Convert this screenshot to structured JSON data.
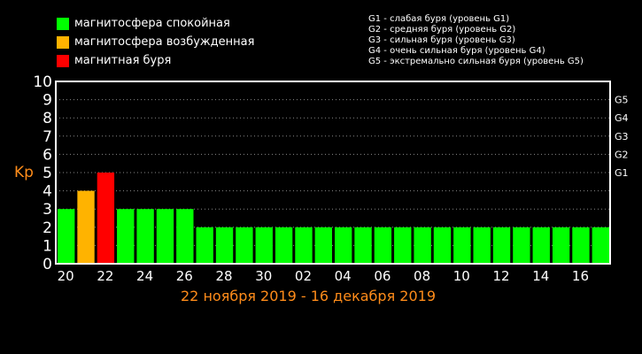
{
  "legend": {
    "items": [
      {
        "label": "магнитосфера спокойная",
        "color": "#00ff00"
      },
      {
        "label": "магнитосфера возбужденная",
        "color": "#ffb300"
      },
      {
        "label": "магнитная буря",
        "color": "#ff0000"
      }
    ],
    "storm_levels": [
      "G1 - слабая буря (уровень G1)",
      "G2 - средняя буря (уровень G2)",
      "G3 - сильная буря (уровень G3)",
      "G4 - очень сильная буря (уровень G4)",
      "G5 - экстремально сильная буря (уровень G5)"
    ]
  },
  "chart_data": {
    "type": "bar",
    "ylabel": "Kp",
    "xlabel": "22 ноября 2019 - 16 декабря 2019",
    "ylim": [
      0,
      10
    ],
    "yticks": [
      "0",
      "1",
      "2",
      "3",
      "4",
      "5",
      "6",
      "7",
      "8",
      "9",
      "10"
    ],
    "right_ticks": [
      {
        "label": "G1",
        "value": 5
      },
      {
        "label": "G2",
        "value": 6
      },
      {
        "label": "G3",
        "value": 7
      },
      {
        "label": "G4",
        "value": 8
      },
      {
        "label": "G5",
        "value": 9
      }
    ],
    "xtick_labels": [
      "20",
      "22",
      "24",
      "26",
      "28",
      "30",
      "02",
      "04",
      "06",
      "08",
      "10",
      "12",
      "14",
      "16"
    ],
    "values": [
      3,
      4,
      5,
      3,
      3,
      3,
      3,
      2,
      2,
      2,
      2,
      2,
      2,
      2,
      2,
      2,
      2,
      2,
      2,
      2,
      2,
      2,
      2,
      2,
      2,
      2,
      2,
      2
    ],
    "bar_colors": [
      "#00ff00",
      "#ffb300",
      "#ff0000",
      "#00ff00",
      "#00ff00",
      "#00ff00",
      "#00ff00",
      "#00ff00",
      "#00ff00",
      "#00ff00",
      "#00ff00",
      "#00ff00",
      "#00ff00",
      "#00ff00",
      "#00ff00",
      "#00ff00",
      "#00ff00",
      "#00ff00",
      "#00ff00",
      "#00ff00",
      "#00ff00",
      "#00ff00",
      "#00ff00",
      "#00ff00",
      "#00ff00",
      "#00ff00",
      "#00ff00",
      "#00ff00"
    ],
    "grid": true,
    "colors": {
      "axis": "#ffffff",
      "grid": "#888888",
      "accent_label": "#ff8c1a"
    }
  }
}
